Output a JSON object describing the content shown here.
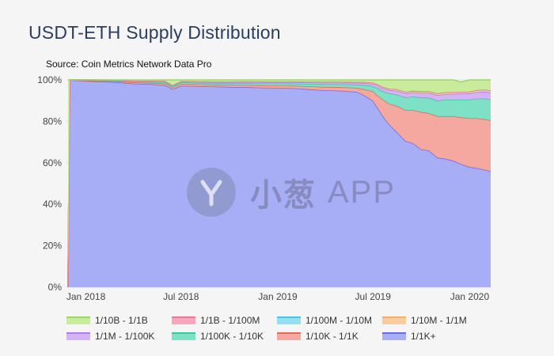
{
  "title": "USDT-ETH Supply Distribution",
  "source": "Source: Coin Metrics Network Data Pro",
  "watermark": {
    "brand": "小葱",
    "suffix": "APP"
  },
  "chart_data": {
    "type": "area",
    "stacked": true,
    "x": [
      "2017-11-28",
      "2017-12-01",
      "2018-01-01",
      "2018-02-01",
      "2018-03-01",
      "2018-04-01",
      "2018-05-01",
      "2018-06-01",
      "2018-06-15",
      "2018-07-01",
      "2018-08-01",
      "2018-09-01",
      "2018-10-01",
      "2018-11-01",
      "2018-12-01",
      "2019-01-01",
      "2019-02-01",
      "2019-03-01",
      "2019-04-01",
      "2019-05-01",
      "2019-06-01",
      "2019-06-15",
      "2019-07-01",
      "2019-07-10",
      "2019-07-20",
      "2019-08-01",
      "2019-08-15",
      "2019-09-01",
      "2019-09-15",
      "2019-10-01",
      "2019-10-15",
      "2019-11-01",
      "2019-11-15",
      "2019-12-01",
      "2019-12-15",
      "2020-01-01",
      "2020-01-15",
      "2020-02-01",
      "2020-02-10"
    ],
    "series": [
      {
        "name": "1/1K+",
        "color": "#6a6cf0",
        "fill": "#a8aef5",
        "values": [
          0,
          99.9,
          99.5,
          99.2,
          98.9,
          98.2,
          98.0,
          97.5,
          95.5,
          97.2,
          97.0,
          96.8,
          96.6,
          96.5,
          96.3,
          96.2,
          96.0,
          95.5,
          95.0,
          94.8,
          94.2,
          92.5,
          90.0,
          86.5,
          82.5,
          78.5,
          75.0,
          70.5,
          69.5,
          66.5,
          66.0,
          62.5,
          62.0,
          61.0,
          59.5,
          58.0,
          57.5,
          56.5,
          56.0
        ]
      },
      {
        "name": "1/10K - 1/1K",
        "color": "#e8685a",
        "fill": "#f5a89f",
        "values": [
          0,
          0.05,
          0.2,
          0.3,
          0.4,
          0.6,
          0.6,
          0.8,
          0.8,
          0.9,
          0.9,
          0.9,
          1.0,
          1.0,
          1.1,
          1.1,
          1.2,
          1.4,
          1.6,
          1.7,
          2.0,
          3.0,
          4.5,
          6.0,
          8.0,
          10.0,
          12.5,
          15.0,
          16.0,
          18.0,
          18.0,
          20.0,
          20.5,
          21.5,
          22.5,
          23.5,
          24.0,
          24.5,
          24.5
        ]
      },
      {
        "name": "1/100K - 1/10K",
        "color": "#33cc99",
        "fill": "#7ee0c5",
        "values": [
          0,
          0.03,
          0.2,
          0.25,
          0.3,
          0.5,
          0.5,
          0.6,
          0.6,
          0.7,
          0.7,
          0.8,
          0.8,
          0.9,
          0.9,
          1.0,
          1.0,
          1.2,
          1.3,
          1.4,
          1.5,
          2.0,
          2.5,
          3.5,
          4.0,
          5.0,
          5.5,
          6.0,
          6.5,
          7.0,
          7.5,
          7.5,
          8.0,
          8.0,
          8.5,
          9.0,
          9.5,
          10.0,
          10.0
        ]
      },
      {
        "name": "1/1M - 1/100K",
        "color": "#b57bf0",
        "fill": "#d2b3f5",
        "values": [
          0,
          0.01,
          0.05,
          0.1,
          0.15,
          0.2,
          0.3,
          0.4,
          0.4,
          0.4,
          0.5,
          0.5,
          0.5,
          0.6,
          0.6,
          0.6,
          0.7,
          0.7,
          0.8,
          0.8,
          0.9,
          1.0,
          1.1,
          1.3,
          1.5,
          1.6,
          1.8,
          2.0,
          2.0,
          2.3,
          2.3,
          2.6,
          2.7,
          2.8,
          2.9,
          3.0,
          3.2,
          3.3,
          3.4
        ]
      },
      {
        "name": "1/10M - 1/1M",
        "color": "#f2b060",
        "fill": "#f7cda0",
        "values": [
          0,
          0.005,
          0.02,
          0.05,
          0.07,
          0.1,
          0.15,
          0.2,
          0.2,
          0.2,
          0.2,
          0.2,
          0.3,
          0.3,
          0.3,
          0.3,
          0.3,
          0.3,
          0.4,
          0.4,
          0.4,
          0.5,
          0.5,
          0.6,
          0.6,
          0.6,
          0.7,
          0.7,
          0.7,
          0.7,
          0.7,
          0.8,
          0.8,
          0.8,
          0.8,
          0.8,
          0.9,
          0.9,
          0.9
        ]
      },
      {
        "name": "1/100M - 1/10M",
        "color": "#40c8e8",
        "fill": "#95dff0",
        "values": [
          0,
          0.002,
          0.01,
          0.02,
          0.02,
          0.03,
          0.03,
          0.03,
          0.03,
          0.04,
          0.04,
          0.04,
          0.04,
          0.04,
          0.05,
          0.05,
          0.05,
          0.05,
          0.05,
          0.05,
          0.05,
          0.06,
          0.06,
          0.06,
          0.06,
          0.07,
          0.07,
          0.07,
          0.07,
          0.07,
          0.07,
          0.08,
          0.08,
          0.08,
          0.08,
          0.08,
          0.08,
          0.08,
          0.08
        ]
      },
      {
        "name": "1/1B - 1/100M",
        "color": "#f07595",
        "fill": "#f5a8bd",
        "values": [
          0,
          0.001,
          0.005,
          0.005,
          0.005,
          0.01,
          0.01,
          0.01,
          0.01,
          0.01,
          0.01,
          0.01,
          0.01,
          0.01,
          0.01,
          0.01,
          0.01,
          0.01,
          0.01,
          0.01,
          0.01,
          0.01,
          0.01,
          0.01,
          0.01,
          0.01,
          0.01,
          0.01,
          0.01,
          0.01,
          0.01,
          0.01,
          0.01,
          0.01,
          0.01,
          0.01,
          0.01,
          0.01,
          0.01
        ]
      },
      {
        "name": "1/10B - 1/1B",
        "color": "#9ad860",
        "fill": "#c8ec9c",
        "values": [
          100,
          0.042,
          0.015,
          0.075,
          0.155,
          0.36,
          0.41,
          0.46,
          2.46,
          0.55,
          0.65,
          0.75,
          0.75,
          0.69,
          0.74,
          0.74,
          0.74,
          0.84,
          0.84,
          0.84,
          0.94,
          0.93,
          1.33,
          2.03,
          3.33,
          4.22,
          4.42,
          5.72,
          5.22,
          5.42,
          5.42,
          6.51,
          5.91,
          5.81,
          4.71,
          5.61,
          4.81,
          4.71,
          5.11
        ]
      }
    ],
    "ylim": [
      0,
      100
    ],
    "yticks": [
      "0%",
      "20%",
      "40%",
      "60%",
      "80%",
      "100%"
    ],
    "ytick_values": [
      0,
      20,
      40,
      60,
      80,
      100
    ],
    "xticks": [
      "Jan 2018",
      "Jul 2018",
      "Jan 2019",
      "Jul 2019",
      "Jan 2020"
    ],
    "xtick_dates": [
      "2018-01-01",
      "2018-07-01",
      "2019-01-01",
      "2019-07-01",
      "2020-01-01"
    ],
    "xlim": [
      "2017-11-25",
      "2020-02-10"
    ],
    "legend_position": "bottom",
    "legend_order": [
      "1/10B - 1/1B",
      "1/1B - 1/100M",
      "1/100M - 1/10M",
      "1/10M - 1/1M",
      "1/1M - 1/100K",
      "1/100K - 1/10K",
      "1/10K - 1/1K",
      "1/1K+"
    ]
  }
}
